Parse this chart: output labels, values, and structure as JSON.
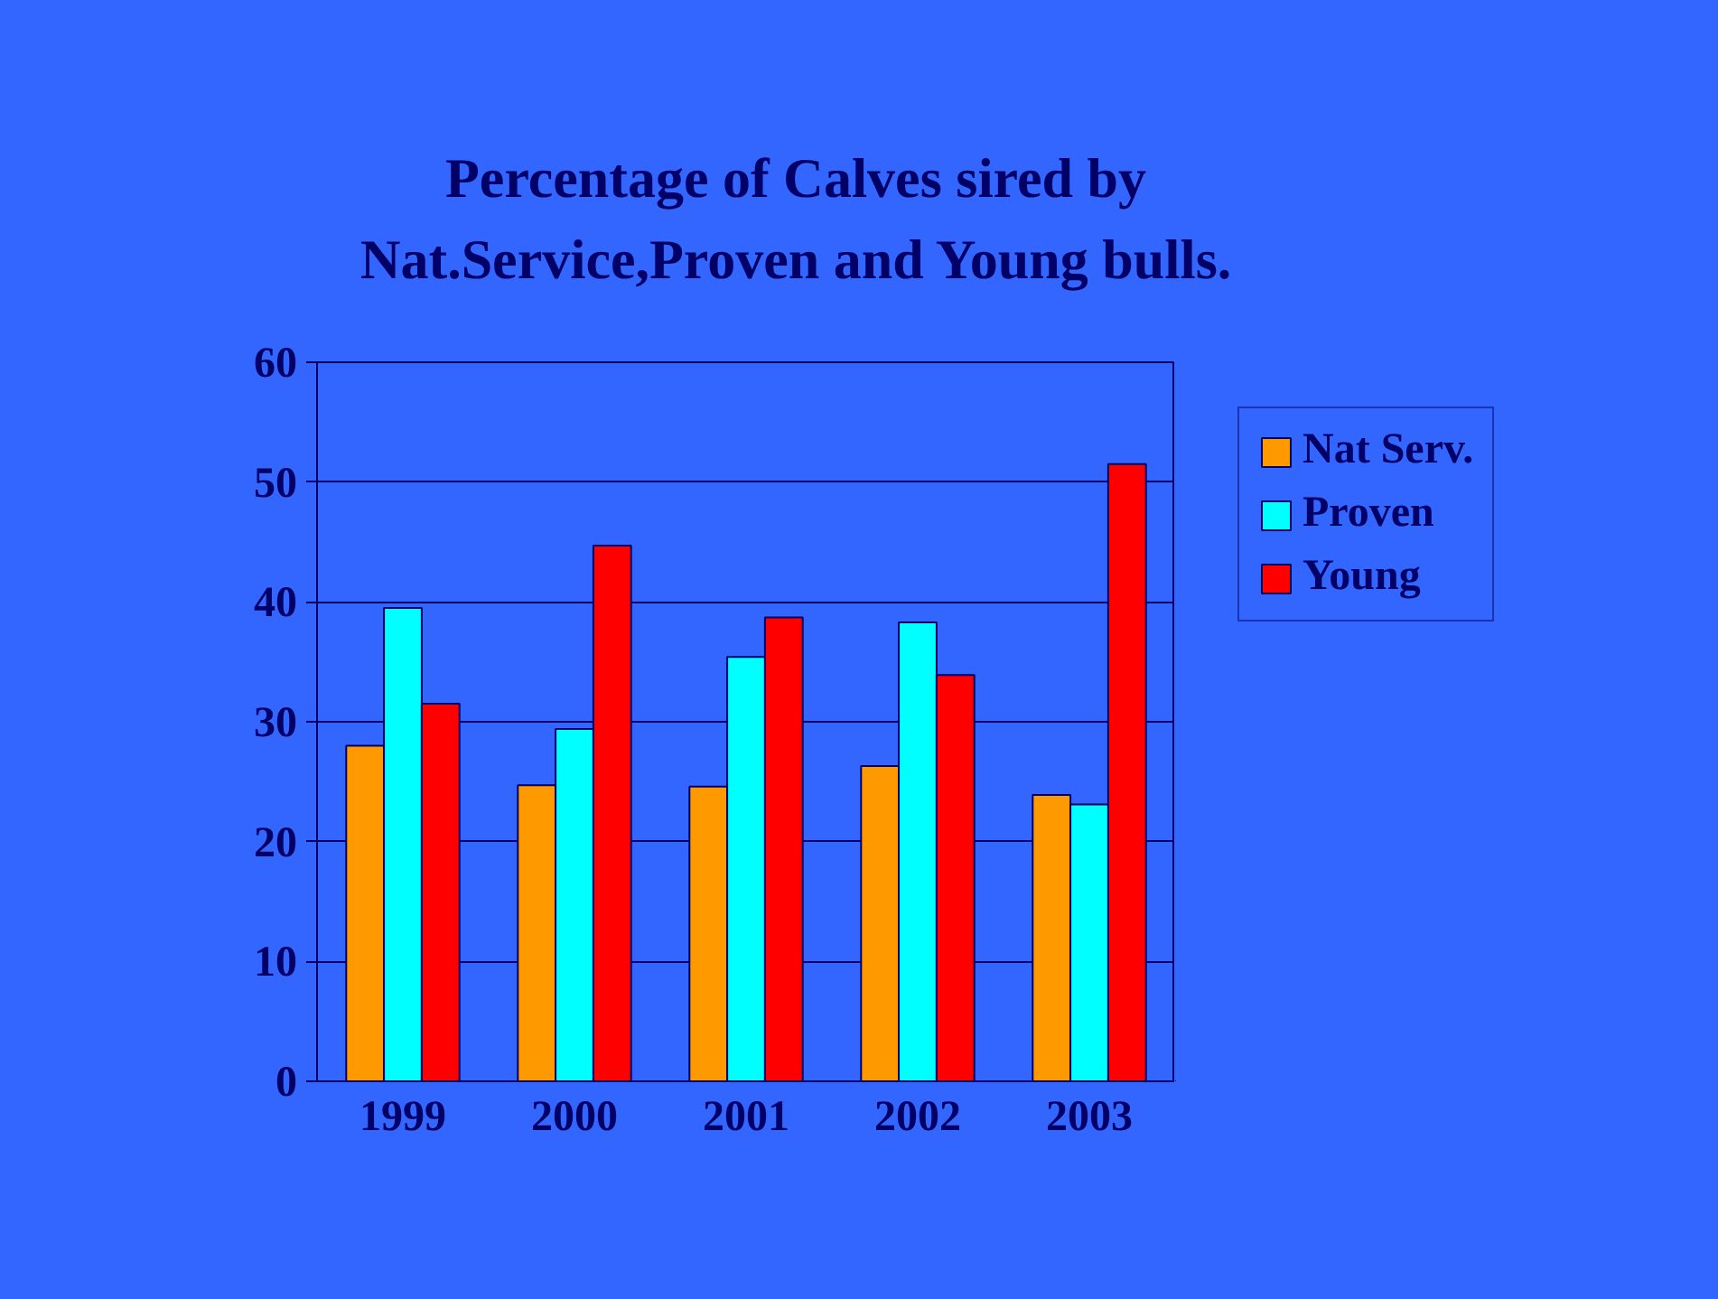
{
  "chart_data": {
    "type": "bar",
    "title": "Percentage of Calves sired by\nNat.Service,Proven and Young bulls.",
    "categories": [
      "1999",
      "2000",
      "2001",
      "2002",
      "2003"
    ],
    "series": [
      {
        "name": "Nat Serv.",
        "color": "#ff9900",
        "values": [
          28,
          24.7,
          24.6,
          26.3,
          23.9
        ]
      },
      {
        "name": "Proven",
        "color": "#00ffff",
        "values": [
          39.5,
          29.4,
          35.4,
          38.3,
          23.1
        ]
      },
      {
        "name": "Young",
        "color": "#ff0000",
        "values": [
          31.5,
          44.7,
          38.7,
          33.9,
          51.5
        ]
      }
    ],
    "ylim": [
      0,
      60
    ],
    "yticks": [
      0,
      10,
      20,
      30,
      40,
      50,
      60
    ],
    "grid": "y",
    "legend": "right"
  }
}
